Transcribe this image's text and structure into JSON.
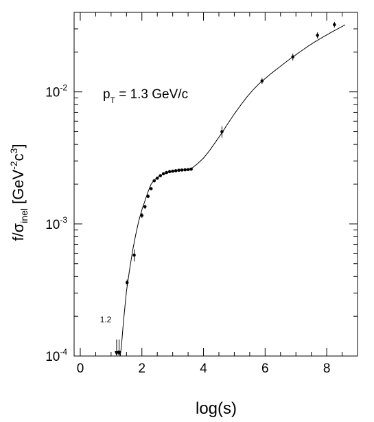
{
  "chart_data": {
    "type": "scatter",
    "title": "",
    "annotation": {
      "prefix": "p",
      "subscript": "T",
      "suffix": " = 1.3 GeV/c"
    },
    "arrow_label": "1.2",
    "xlabel": "log(s)",
    "ylabel": {
      "main": "f/σ",
      "sub": "inel",
      "bracket_open": " [GeV",
      "exp1": "-2",
      "mid": "c",
      "exp2": "3",
      "bracket_close": "]"
    },
    "x_scale": "linear",
    "y_scale": "log",
    "xlim": [
      -0.2,
      9.0
    ],
    "ylim": [
      0.0001,
      0.04
    ],
    "x_ticks": [
      {
        "value": 0,
        "label": "0"
      },
      {
        "value": 2,
        "label": "2"
      },
      {
        "value": 4,
        "label": "4"
      },
      {
        "value": 6,
        "label": "6"
      },
      {
        "value": 8,
        "label": "8"
      }
    ],
    "y_ticks": [
      {
        "value": 0.0001,
        "base": "10",
        "exp": "-4"
      },
      {
        "value": 0.001,
        "base": "10",
        "exp": "-3"
      },
      {
        "value": 0.01,
        "base": "10",
        "exp": "-2"
      }
    ],
    "grid": false,
    "series": [
      {
        "kind": "points_with_errors",
        "x": [
          1.25,
          1.52,
          1.75,
          2.0,
          2.1,
          2.2,
          2.3,
          2.4,
          2.5,
          2.6,
          2.7,
          2.8,
          2.9,
          3.0,
          3.1,
          3.2,
          3.3,
          3.4,
          3.5,
          3.6,
          4.6,
          5.9,
          6.9,
          7.7,
          8.25
        ],
        "y": [
          0.000107,
          0.00036,
          0.00058,
          0.00116,
          0.00135,
          0.00162,
          0.00185,
          0.00212,
          0.00222,
          0.00232,
          0.0024,
          0.00245,
          0.00249,
          0.00251,
          0.00253,
          0.00255,
          0.00256,
          0.00257,
          0.00258,
          0.0026,
          0.005,
          0.0121,
          0.0184,
          0.0268,
          0.0323
        ],
        "y_err": [
          0,
          2e-05,
          6e-05,
          5e-05,
          5e-05,
          5e-05,
          5e-05,
          4e-05,
          4e-05,
          4e-05,
          4e-05,
          4e-05,
          4e-05,
          4e-05,
          4e-05,
          4e-05,
          4e-05,
          4e-05,
          4e-05,
          4e-05,
          0.0005,
          0.0006,
          0.0011,
          0.0014,
          0.0016
        ]
      },
      {
        "kind": "curve",
        "x": [
          1.3,
          1.35,
          1.4,
          1.5,
          1.6,
          1.7,
          1.8,
          1.9,
          2.0,
          2.1,
          2.2,
          2.3,
          2.4,
          2.5,
          2.6,
          2.7,
          2.8,
          3.0,
          3.2,
          3.4,
          3.6,
          3.8,
          4.0,
          4.2,
          4.4,
          4.6,
          4.8,
          5.0,
          5.2,
          5.4,
          5.6,
          5.8,
          6.0,
          6.2,
          6.4,
          6.6,
          6.8,
          7.0,
          7.2,
          7.4,
          7.6,
          7.8,
          8.0,
          8.2,
          8.4,
          8.6
        ],
        "y": [
          0.0001,
          0.00013,
          0.00018,
          0.00031,
          0.00045,
          0.00063,
          0.00083,
          0.00106,
          0.00128,
          0.0015,
          0.00175,
          0.002,
          0.00215,
          0.00225,
          0.00233,
          0.0024,
          0.00245,
          0.0025,
          0.00253,
          0.00256,
          0.00262,
          0.00285,
          0.00315,
          0.0036,
          0.0042,
          0.0049,
          0.0058,
          0.0068,
          0.0079,
          0.0091,
          0.0103,
          0.0115,
          0.0126,
          0.0138,
          0.015,
          0.0163,
          0.0177,
          0.0191,
          0.0206,
          0.0222,
          0.0238,
          0.0254,
          0.027,
          0.0287,
          0.0304,
          0.0322
        ]
      }
    ],
    "arrows": [
      {
        "x": 1.18,
        "y": 0.0001
      },
      {
        "x": 1.26,
        "y": 0.0001
      }
    ]
  }
}
